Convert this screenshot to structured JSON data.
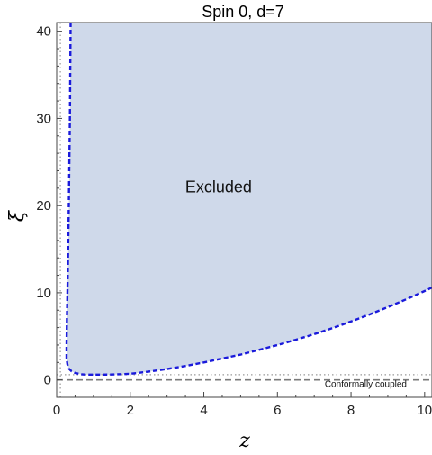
{
  "chart_data": {
    "type": "area",
    "title": "Spin 0, d=7",
    "xlabel": "z",
    "ylabel": "ξ",
    "xlim": [
      0,
      10.2
    ],
    "ylim": [
      -2,
      41
    ],
    "xticks": [
      0,
      2,
      4,
      6,
      8,
      10
    ],
    "yticks": [
      0,
      10,
      20,
      30,
      40
    ],
    "grid": false,
    "colors": {
      "fill": "#cfd9ea",
      "boundary": "#1a1adb",
      "conformal_line": "#7a7a7a",
      "dotted_guides": "#999999"
    },
    "series": [
      {
        "x": [
          0.38,
          0.36,
          0.33,
          0.3,
          0.28,
          0.27,
          0.27,
          0.29,
          0.33,
          0.4,
          0.5,
          0.65,
          0.8,
          1.0,
          1.2,
          1.5,
          2.0,
          2.5,
          3.0,
          3.5,
          4.0,
          4.5,
          5.0,
          5.5,
          6.0,
          6.5,
          7.0,
          7.5,
          8.0,
          8.5,
          9.0,
          9.5,
          10.0,
          10.2
        ],
        "y": [
          41,
          30,
          20,
          12,
          7,
          4,
          2.5,
          1.8,
          1.3,
          1.0,
          0.8,
          0.65,
          0.6,
          0.6,
          0.6,
          0.62,
          0.7,
          0.95,
          1.25,
          1.6,
          2.0,
          2.45,
          2.9,
          3.45,
          4.0,
          4.6,
          5.25,
          5.95,
          6.7,
          7.5,
          8.35,
          9.25,
          10.2,
          10.6
        ]
      }
    ],
    "conformal_xi": 0.0,
    "dotted_xi": 0.6,
    "dotted_z": 0.1,
    "annotations": {
      "region": {
        "text": "Excluded",
        "x": 4.4,
        "y": 21.5
      },
      "line": {
        "text": "Conformally coupled",
        "x": 8.4,
        "y": -0.8
      }
    }
  }
}
